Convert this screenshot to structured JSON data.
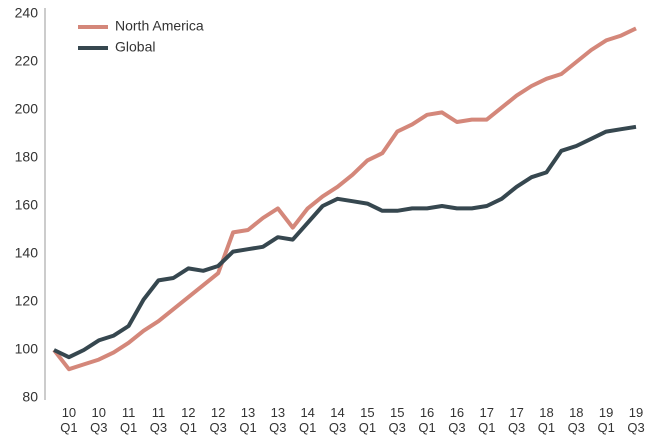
{
  "chart_data": {
    "type": "line",
    "categories": [
      null,
      "10 Q1",
      null,
      "10 Q3",
      null,
      "11 Q1",
      null,
      "11 Q3",
      null,
      "12 Q1",
      null,
      "12 Q3",
      null,
      "13 Q1",
      null,
      "13 Q3",
      null,
      "14 Q1",
      null,
      "14 Q3",
      null,
      "15 Q1",
      null,
      "15 Q3",
      null,
      "16 Q1",
      null,
      "16 Q3",
      null,
      "17 Q1",
      null,
      "17 Q3",
      null,
      "18 Q1",
      null,
      "18 Q3",
      null,
      "19 Q1",
      null,
      "19 Q3"
    ],
    "series": [
      {
        "name": "North America",
        "color": "#d4877a",
        "values": [
          100,
          92,
          94,
          96,
          99,
          103,
          108,
          112,
          117,
          122,
          127,
          132,
          149,
          150,
          155,
          159,
          151,
          159,
          164,
          168,
          173,
          179,
          182,
          191,
          194,
          198,
          199,
          195,
          196,
          196,
          201,
          206,
          210,
          213,
          215,
          220,
          225,
          229,
          231,
          234
        ]
      },
      {
        "name": "Global",
        "color": "#36474f",
        "values": [
          100,
          97,
          100,
          104,
          106,
          110,
          121,
          129,
          130,
          134,
          133,
          135,
          141,
          142,
          143,
          147,
          146,
          153,
          160,
          163,
          162,
          161,
          158,
          158,
          159,
          159,
          160,
          159,
          159,
          160,
          163,
          168,
          172,
          174,
          183,
          185,
          188,
          191,
          192,
          193
        ]
      }
    ],
    "ylim": [
      80,
      240
    ],
    "yticks": [
      80,
      100,
      120,
      140,
      160,
      180,
      200,
      220,
      240
    ],
    "legend": "upper-left"
  }
}
